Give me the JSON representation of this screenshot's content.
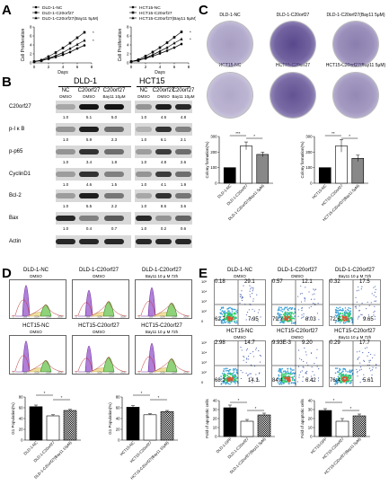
{
  "panels": {
    "a": {
      "label": "A"
    },
    "b": {
      "label": "B"
    },
    "c": {
      "label": "C"
    },
    "d": {
      "label": "D"
    },
    "e": {
      "label": "E"
    }
  },
  "panel_a": {
    "left_legend": [
      "DLD-1-NC",
      "DLD-1-C20orf27",
      "DLD-1-C20orf27(Bay11 5μM)"
    ],
    "right_legend": [
      "HCT15-NC",
      "HCT15-C20orf27",
      "HCT15-C20orf27(Bay11 5μM)"
    ],
    "ylabel": "Cell Proliferation",
    "xlabel": "Days",
    "yticks": [
      "0",
      "2",
      "4",
      "6",
      "8"
    ],
    "xticks": [
      "0",
      "2",
      "4",
      "6",
      "8"
    ]
  },
  "panel_b": {
    "dld_title": "DLD-1",
    "hct_title": "HCT15",
    "dld_cols": [
      "NC",
      "C20orf27",
      "C20orf27"
    ],
    "dld_cols2": [
      "DMSO",
      "DMSO",
      "Bay11 10μM"
    ],
    "hct_cols": [
      "NC",
      "C20orf27",
      "C20orf27"
    ],
    "hct_cols2": [
      "DMSO",
      "DMSO",
      "Bay11 10μM"
    ],
    "rows": [
      {
        "name": "C20orf27",
        "dld": [
          "1.0",
          "5.1",
          "5.0"
        ],
        "hct": [
          "1.0",
          "4.6",
          "4.8"
        ]
      },
      {
        "name": "p-I κ B",
        "dld": [
          "1.0",
          "5.9",
          "2.3"
        ],
        "hct": [
          "1.0",
          "6.1",
          "2.1"
        ]
      },
      {
        "name": "p-p65",
        "dld": [
          "1.0",
          "3.4",
          "1.8"
        ],
        "hct": [
          "1.0",
          "4.8",
          "2.6"
        ]
      },
      {
        "name": "CyclinD1",
        "dld": [
          "1.0",
          "4.6",
          "1.5"
        ],
        "hct": [
          "1.0",
          "4.1",
          "1.9"
        ]
      },
      {
        "name": "Bcl-2",
        "dld": [
          "1.0",
          "5.5",
          "2.2"
        ],
        "hct": [
          "1.0",
          "8.6",
          "3.6"
        ]
      },
      {
        "name": "Bax",
        "dld": [
          "1.0",
          "0.4",
          "0.7"
        ],
        "hct": [
          "1.0",
          "0.2",
          "0.6"
        ]
      },
      {
        "name": "Actin",
        "dld": [],
        "hct": []
      }
    ]
  },
  "panel_c": {
    "top_labels": [
      "DLD-1-NC",
      "DLD-1-C20orf27",
      "DLD-1-C20orf27(Bay11 5μM)"
    ],
    "mid_labels": [
      "HCT15-NC",
      "HCT15-C20orf27",
      "HCT15-C20orf27(Bay11 5μM)"
    ],
    "ylabel": "Colony formation(%)",
    "yticks": [
      "0",
      "100",
      "200",
      "300"
    ],
    "sig": [
      "***",
      "*",
      "**",
      "*"
    ],
    "left_cats": [
      "DLD-1-NC",
      "DLD-1-C20orf27",
      "DLD-1-C20orf27(Bay11 5μM)"
    ],
    "right_cats": [
      "HCT15-NC",
      "HCT15-C20orf27",
      "HCT15-C20orf27(Bay11 5μM)"
    ]
  },
  "panel_d": {
    "top_titles": [
      "DLD-1-NC",
      "DLD-1-C20orf27",
      "DLD-1-C20orf27"
    ],
    "top_subs": [
      "DMSO",
      "DMSO",
      "Bay11  10 μ M    72h"
    ],
    "bot_titles": [
      "HCT15-NC",
      "HCT15-C20orf27",
      "HCT15-C20orf27"
    ],
    "bot_subs": [
      "DMSO",
      "DMSO",
      "Bay11  10 μ M    72h"
    ],
    "ylabel": "G1 Population(%)",
    "yticks": [
      "0",
      "20",
      "40",
      "60",
      "80"
    ],
    "sig": [
      "*",
      "*",
      "*",
      "*"
    ],
    "left_cats": [
      "DLD-1-NC",
      "DLD-1-C20orf27",
      "DLD-1-C20orf27(Bay11 10μM)"
    ],
    "right_cats": [
      "HCT15-NC",
      "HCT15-C20orf27",
      "HCT15-C20orf27(Bay11 10μM)"
    ]
  },
  "panel_e": {
    "top_titles": [
      "DLD-1-NC",
      "DLD-1-C20orf27",
      "DLD-1-C20orf27"
    ],
    "top_subs": [
      "DMSO",
      "DMSO",
      "Bay11  10 μ M    72h"
    ],
    "bot_titles": [
      "HCT15-NC",
      "HCT15-C20orf27",
      "HCT15-C20orf27"
    ],
    "bot_subs": [
      "DMSO",
      "DMSO",
      "Bay11  10 μ M    72h"
    ],
    "top_quads": [
      [
        "0.18",
        "29.1",
        "62.7",
        "7.95"
      ],
      [
        "0.57",
        "12.1",
        "79.3",
        "8.03"
      ],
      [
        "0.32",
        "17.5",
        "72.6",
        "9.65"
      ]
    ],
    "bot_quads": [
      [
        "2.98",
        "14.7",
        "68.2",
        "14.1"
      ],
      [
        "9.93E-3",
        "9.20",
        "84.4",
        "6.42"
      ],
      [
        "0.29",
        "17.7",
        "76.4",
        "5.61"
      ]
    ],
    "yticks_flow": [
      "10⁵",
      "10⁴",
      "10³",
      "10²",
      "0"
    ],
    "ylabel": "Fold of apoptotic cells",
    "sig": [
      "*",
      "*",
      "*",
      "*"
    ],
    "left_cats": [
      "DLD-1-GFP",
      "DLD-1-C20orf27",
      "DLD-1-C20orf27(Bay11 5μM)"
    ],
    "right_cats": [
      "HCT15-GFP",
      "HCT15-C20orf27",
      "HCT15-C20orf27(Bay11 5μM)"
    ]
  },
  "chart_data": [
    {
      "type": "line",
      "xlabel": "Days",
      "ylabel": "Cell Proliferation",
      "x": [
        0,
        1,
        2,
        3,
        4,
        5,
        6,
        7
      ],
      "series": [
        {
          "name": "DLD-1-NC",
          "values": [
            0.3,
            0.5,
            0.9,
            1.3,
            1.8,
            2.4,
            3.2,
            3.9
          ]
        },
        {
          "name": "DLD-1-C20orf27",
          "values": [
            0.3,
            0.6,
            1.4,
            2.3,
            3.3,
            4.4,
            5.6,
            6.8
          ]
        },
        {
          "name": "DLD-1-C20orf27(Bay11 5μM)",
          "values": [
            0.3,
            0.5,
            1.0,
            1.6,
            2.3,
            3.2,
            4.1,
            5.0
          ]
        }
      ],
      "ylim": [
        0,
        8
      ],
      "xlim": [
        0,
        8
      ]
    },
    {
      "type": "line",
      "xlabel": "Days",
      "ylabel": "Cell Proliferation",
      "x": [
        0,
        1,
        2,
        3,
        4,
        5,
        6,
        7
      ],
      "series": [
        {
          "name": "HCT15-NC",
          "values": [
            0.3,
            0.6,
            1.0,
            1.5,
            2.1,
            2.7,
            3.4,
            4.2
          ]
        },
        {
          "name": "HCT15-C20orf27",
          "values": [
            0.3,
            0.7,
            1.5,
            2.4,
            3.4,
            4.5,
            5.7,
            6.9
          ]
        },
        {
          "name": "HCT15-C20orf27(Bay11 5μM)",
          "values": [
            0.3,
            0.5,
            1.1,
            1.8,
            2.6,
            3.4,
            4.4,
            5.3
          ]
        }
      ],
      "ylim": [
        0,
        8
      ],
      "xlim": [
        0,
        8
      ]
    },
    {
      "type": "bar",
      "ylabel": "Colony formation(%)",
      "categories": [
        "DLD-1-NC",
        "DLD-1-C20orf27",
        "DLD-1-C20orf27(Bay11 5μM)"
      ],
      "values": [
        100,
        240,
        185
      ],
      "errors": [
        0,
        25,
        15
      ],
      "ylim": [
        0,
        300
      ]
    },
    {
      "type": "bar",
      "ylabel": "Colony formation(%)",
      "categories": [
        "HCT15-NC",
        "HCT15-C20orf27",
        "HCT15-C20orf27(Bay11 5μM)"
      ],
      "values": [
        100,
        240,
        160
      ],
      "errors": [
        0,
        40,
        20
      ],
      "ylim": [
        0,
        300
      ]
    },
    {
      "type": "bar",
      "ylabel": "G1 Population(%)",
      "categories": [
        "DLD-1-NC",
        "DLD-1-C20orf27",
        "DLD-1-C20orf27(Bay11 10μM)"
      ],
      "values": [
        62,
        45,
        55
      ],
      "errors": [
        3,
        2,
        2
      ],
      "ylim": [
        0,
        80
      ]
    },
    {
      "type": "bar",
      "ylabel": "G1 Population(%)",
      "categories": [
        "HCT15-NC",
        "HCT15-C20orf27",
        "HCT15-C20orf27(Bay11 10μM)"
      ],
      "values": [
        61,
        47,
        53
      ],
      "errors": [
        3,
        2,
        2
      ],
      "ylim": [
        0,
        80
      ]
    },
    {
      "type": "bar",
      "ylabel": "Fold of apoptotic cells",
      "categories": [
        "DLD-1-GFP",
        "DLD-1-C20orf27",
        "DLD-1-C20orf27(Bay11 5μM)"
      ],
      "values": [
        32,
        17,
        24
      ],
      "errors": [
        3,
        2,
        2
      ],
      "ylim": [
        0,
        40
      ]
    },
    {
      "type": "bar",
      "ylabel": "Fold of apoptotic cells",
      "categories": [
        "HCT15-GFP",
        "HCT15-C20orf27",
        "HCT15-C20orf27(Bay11 5μM)"
      ],
      "values": [
        29,
        17,
        23
      ],
      "errors": [
        2,
        3,
        2
      ],
      "ylim": [
        0,
        40
      ]
    }
  ]
}
